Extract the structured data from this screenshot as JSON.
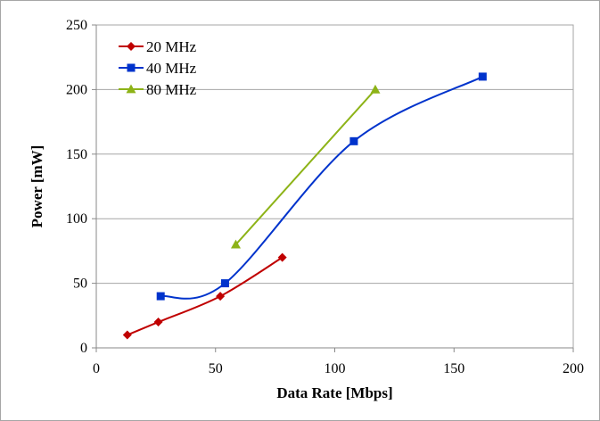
{
  "chart_data": {
    "type": "line",
    "title": "",
    "xlabel": "Data Rate [Mbps]",
    "ylabel": "Power [mW]",
    "xlim": [
      0,
      200
    ],
    "ylim": [
      0,
      250
    ],
    "xticks": [
      0,
      50,
      100,
      150,
      200
    ],
    "yticks": [
      0,
      50,
      100,
      150,
      200,
      250
    ],
    "x_tick_labels": [
      "0",
      "50",
      "100",
      "150",
      "200"
    ],
    "y_tick_labels": [
      "0",
      "50",
      "100",
      "150",
      "200",
      "250"
    ],
    "grid": "horizontal",
    "legend_position": "top-left",
    "series": [
      {
        "name": "20 MHz",
        "color": "#c00000",
        "marker": "diamond",
        "smooth": true,
        "x": [
          13,
          26,
          52,
          78
        ],
        "y": [
          10,
          20,
          40,
          70
        ]
      },
      {
        "name": "40 MHz",
        "color": "#0033cc",
        "marker": "square",
        "smooth": true,
        "x": [
          27,
          54,
          108,
          162
        ],
        "y": [
          40,
          50,
          160,
          210
        ]
      },
      {
        "name": "80 MHz",
        "color": "#8db317",
        "marker": "triangle",
        "smooth": false,
        "x": [
          58.5,
          117
        ],
        "y": [
          80,
          200
        ]
      }
    ]
  }
}
